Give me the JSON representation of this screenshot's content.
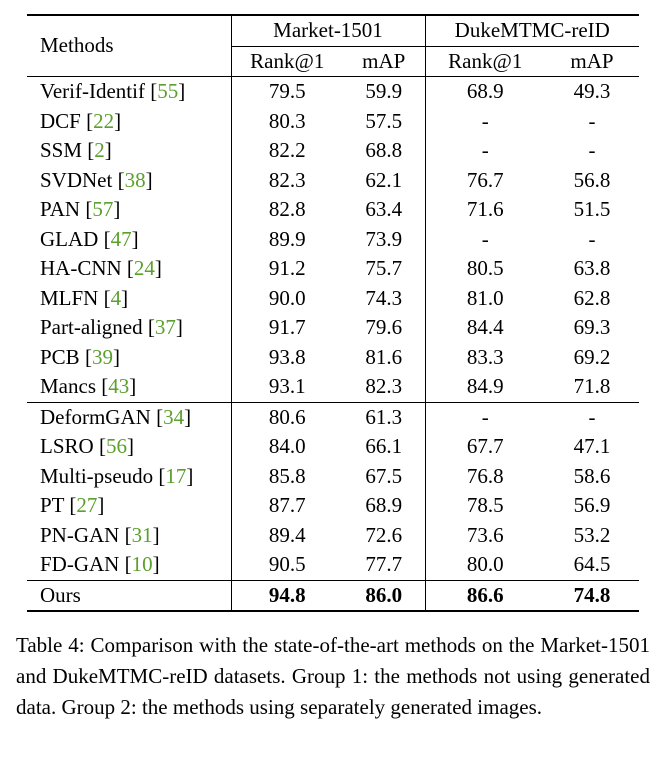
{
  "table": {
    "header": {
      "methods_label": "Methods",
      "market_label": "Market-1501",
      "duke_label": "DukeMTMC-reID",
      "rank1_label": "Rank@1",
      "map_label": "mAP"
    },
    "group1": [
      {
        "method": "Verif-Identif",
        "ref": "55",
        "m_rank1": "79.5",
        "m_map": "59.9",
        "d_rank1": "68.9",
        "d_map": "49.3"
      },
      {
        "method": "DCF",
        "ref": "22",
        "m_rank1": "80.3",
        "m_map": "57.5",
        "d_rank1": "-",
        "d_map": "-"
      },
      {
        "method": "SSM",
        "ref": "2",
        "m_rank1": "82.2",
        "m_map": "68.8",
        "d_rank1": "-",
        "d_map": "-"
      },
      {
        "method": "SVDNet",
        "ref": "38",
        "m_rank1": "82.3",
        "m_map": "62.1",
        "d_rank1": "76.7",
        "d_map": "56.8"
      },
      {
        "method": "PAN",
        "ref": "57",
        "m_rank1": "82.8",
        "m_map": "63.4",
        "d_rank1": "71.6",
        "d_map": "51.5"
      },
      {
        "method": "GLAD",
        "ref": "47",
        "m_rank1": "89.9",
        "m_map": "73.9",
        "d_rank1": "-",
        "d_map": "-"
      },
      {
        "method": "HA-CNN",
        "ref": "24",
        "m_rank1": "91.2",
        "m_map": "75.7",
        "d_rank1": "80.5",
        "d_map": "63.8"
      },
      {
        "method": "MLFN",
        "ref": "4",
        "m_rank1": "90.0",
        "m_map": "74.3",
        "d_rank1": "81.0",
        "d_map": "62.8"
      },
      {
        "method": "Part-aligned",
        "ref": "37",
        "m_rank1": "91.7",
        "m_map": "79.6",
        "d_rank1": "84.4",
        "d_map": "69.3"
      },
      {
        "method": "PCB",
        "ref": "39",
        "m_rank1": "93.8",
        "m_map": "81.6",
        "d_rank1": "83.3",
        "d_map": "69.2"
      },
      {
        "method": "Mancs",
        "ref": "43",
        "m_rank1": "93.1",
        "m_map": "82.3",
        "d_rank1": "84.9",
        "d_map": "71.8"
      }
    ],
    "group2": [
      {
        "method": "DeformGAN",
        "ref": "34",
        "m_rank1": "80.6",
        "m_map": "61.3",
        "d_rank1": "-",
        "d_map": "-"
      },
      {
        "method": "LSRO",
        "ref": "56",
        "m_rank1": "84.0",
        "m_map": "66.1",
        "d_rank1": "67.7",
        "d_map": "47.1"
      },
      {
        "method": "Multi-pseudo",
        "ref": "17",
        "m_rank1": "85.8",
        "m_map": "67.5",
        "d_rank1": "76.8",
        "d_map": "58.6"
      },
      {
        "method": "PT",
        "ref": "27",
        "m_rank1": "87.7",
        "m_map": "68.9",
        "d_rank1": "78.5",
        "d_map": "56.9"
      },
      {
        "method": "PN-GAN",
        "ref": "31",
        "m_rank1": "89.4",
        "m_map": "72.6",
        "d_rank1": "73.6",
        "d_map": "53.2"
      },
      {
        "method": "FD-GAN",
        "ref": "10",
        "m_rank1": "90.5",
        "m_map": "77.7",
        "d_rank1": "80.0",
        "d_map": "64.5"
      }
    ],
    "ours": {
      "method": "Ours",
      "m_rank1": "94.8",
      "m_map": "86.0",
      "d_rank1": "86.6",
      "d_map": "74.8"
    }
  },
  "caption": "Table 4: Comparison with the state-of-the-art methods on the Market-1501 and DukeMTMC-reID datasets. Group 1: the methods not using generated data. Group 2: the methods using separately generated images.",
  "colors": {
    "citation": "#5aa02c"
  }
}
